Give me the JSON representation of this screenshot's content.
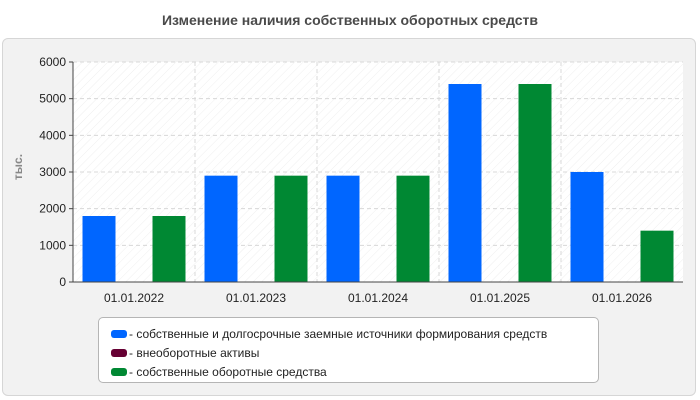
{
  "chart_data": {
    "type": "bar",
    "title": "Изменение наличия собственных оборотных средств",
    "ylabel": "тыс.",
    "xlabel": "",
    "ylim": [
      0,
      6000
    ],
    "yticks": [
      0,
      1000,
      2000,
      3000,
      4000,
      5000,
      6000
    ],
    "grid": true,
    "legend_position": "bottom",
    "categories": [
      "01.01.2022",
      "01.01.2023",
      "01.01.2024",
      "01.01.2025",
      "01.01.2026"
    ],
    "series": [
      {
        "name": "собственные и долгосрочные заемные источники формирования средств",
        "color": "#0066ff",
        "values": [
          1800,
          2900,
          2900,
          5400,
          3000
        ]
      },
      {
        "name": "внеоборотные активы",
        "color": "#660033",
        "values": [
          10,
          10,
          10,
          10,
          10
        ]
      },
      {
        "name": "собственные оборотные средства",
        "color": "#008833",
        "values": [
          1800,
          2900,
          2900,
          5400,
          1400
        ]
      }
    ]
  }
}
